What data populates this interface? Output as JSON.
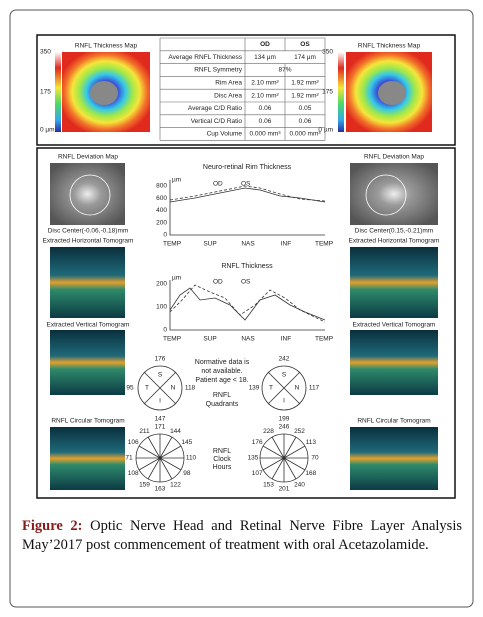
{
  "top": {
    "left_title": "RNFL Thickness Map",
    "right_title": "RNFL Thickness Map",
    "scale": [
      "350",
      "175",
      "0 µm"
    ],
    "table": {
      "header": [
        "OD",
        "OS"
      ],
      "rows": [
        [
          "Average RNFL Thickness",
          "134 µm",
          "174 µm"
        ],
        [
          "RNFL Symmetry",
          "87%"
        ],
        [
          "Rim Area",
          "2.10 mm²",
          "1.92 mm²"
        ],
        [
          "Disc Area",
          "2.10 mm²",
          "1.92 mm²"
        ],
        [
          "Average C/D Ratio",
          "0.06",
          "0.05"
        ],
        [
          "Vertical C/D Ratio",
          "0.06",
          "0.06"
        ],
        [
          "Cup Volume",
          "0.000 mm³",
          "0.000 mm³"
        ]
      ]
    }
  },
  "left": {
    "deviation": "RNFL Deviation Map",
    "disc": "Disc Center(-0.06,-0.18)mm",
    "horizontal": "Extracted Horizontal Tomogram",
    "vertical": "Extracted Vertical Tomogram",
    "circular": "RNFL Circular Tomogram"
  },
  "right": {
    "deviation": "RNFL Deviation Map",
    "disc": "Disc Center(0.15,-0.21)mm",
    "horizontal": "Extracted Horizontal Tomogram",
    "vertical": "Extracted Vertical Tomogram",
    "circular": "RNFL Circular Tomogram"
  },
  "rim_chart": {
    "title": "Neuro-retinal Rim Thickness",
    "unit": "µm",
    "legend": [
      "OD",
      "OS"
    ],
    "yticks": [
      "800",
      "600",
      "400",
      "200",
      "0"
    ],
    "xlabels": [
      "TEMP",
      "SUP",
      "NAS",
      "INF",
      "TEMP"
    ]
  },
  "rnfl_chart": {
    "title": "RNFL Thickness",
    "unit": "µm",
    "legend": [
      "OD",
      "OS"
    ],
    "yticks": [
      "200",
      "100",
      "0"
    ],
    "xlabels": [
      "TEMP",
      "SUP",
      "NAS",
      "INF",
      "TEMP"
    ]
  },
  "quadrants": {
    "note": [
      "Normative data is",
      "not available.",
      "Patient age < 18."
    ],
    "label": [
      "RNFL",
      "Quadrants"
    ],
    "letters": [
      "S",
      "T",
      "N",
      "I"
    ],
    "left": [
      "176",
      "95",
      "118",
      "147"
    ],
    "right": [
      "242",
      "139",
      "117",
      "199"
    ]
  },
  "clock": {
    "label": [
      "RNFL",
      "Clock",
      "Hours"
    ],
    "left": [
      "171",
      "144",
      "145",
      "110",
      "98",
      "122",
      "163",
      "159",
      "108",
      "71",
      "106",
      "211"
    ],
    "right": [
      "246",
      "252",
      "113",
      "70",
      "168",
      "240",
      "201",
      "153",
      "107",
      "135",
      "176",
      "228"
    ]
  },
  "caption": {
    "label": "Figure 2:",
    "text": "Optic Nerve Head and Retinal Nerve Fibre Layer Analysis May’2017 post commencement of treatment with oral Acetazolamide."
  }
}
